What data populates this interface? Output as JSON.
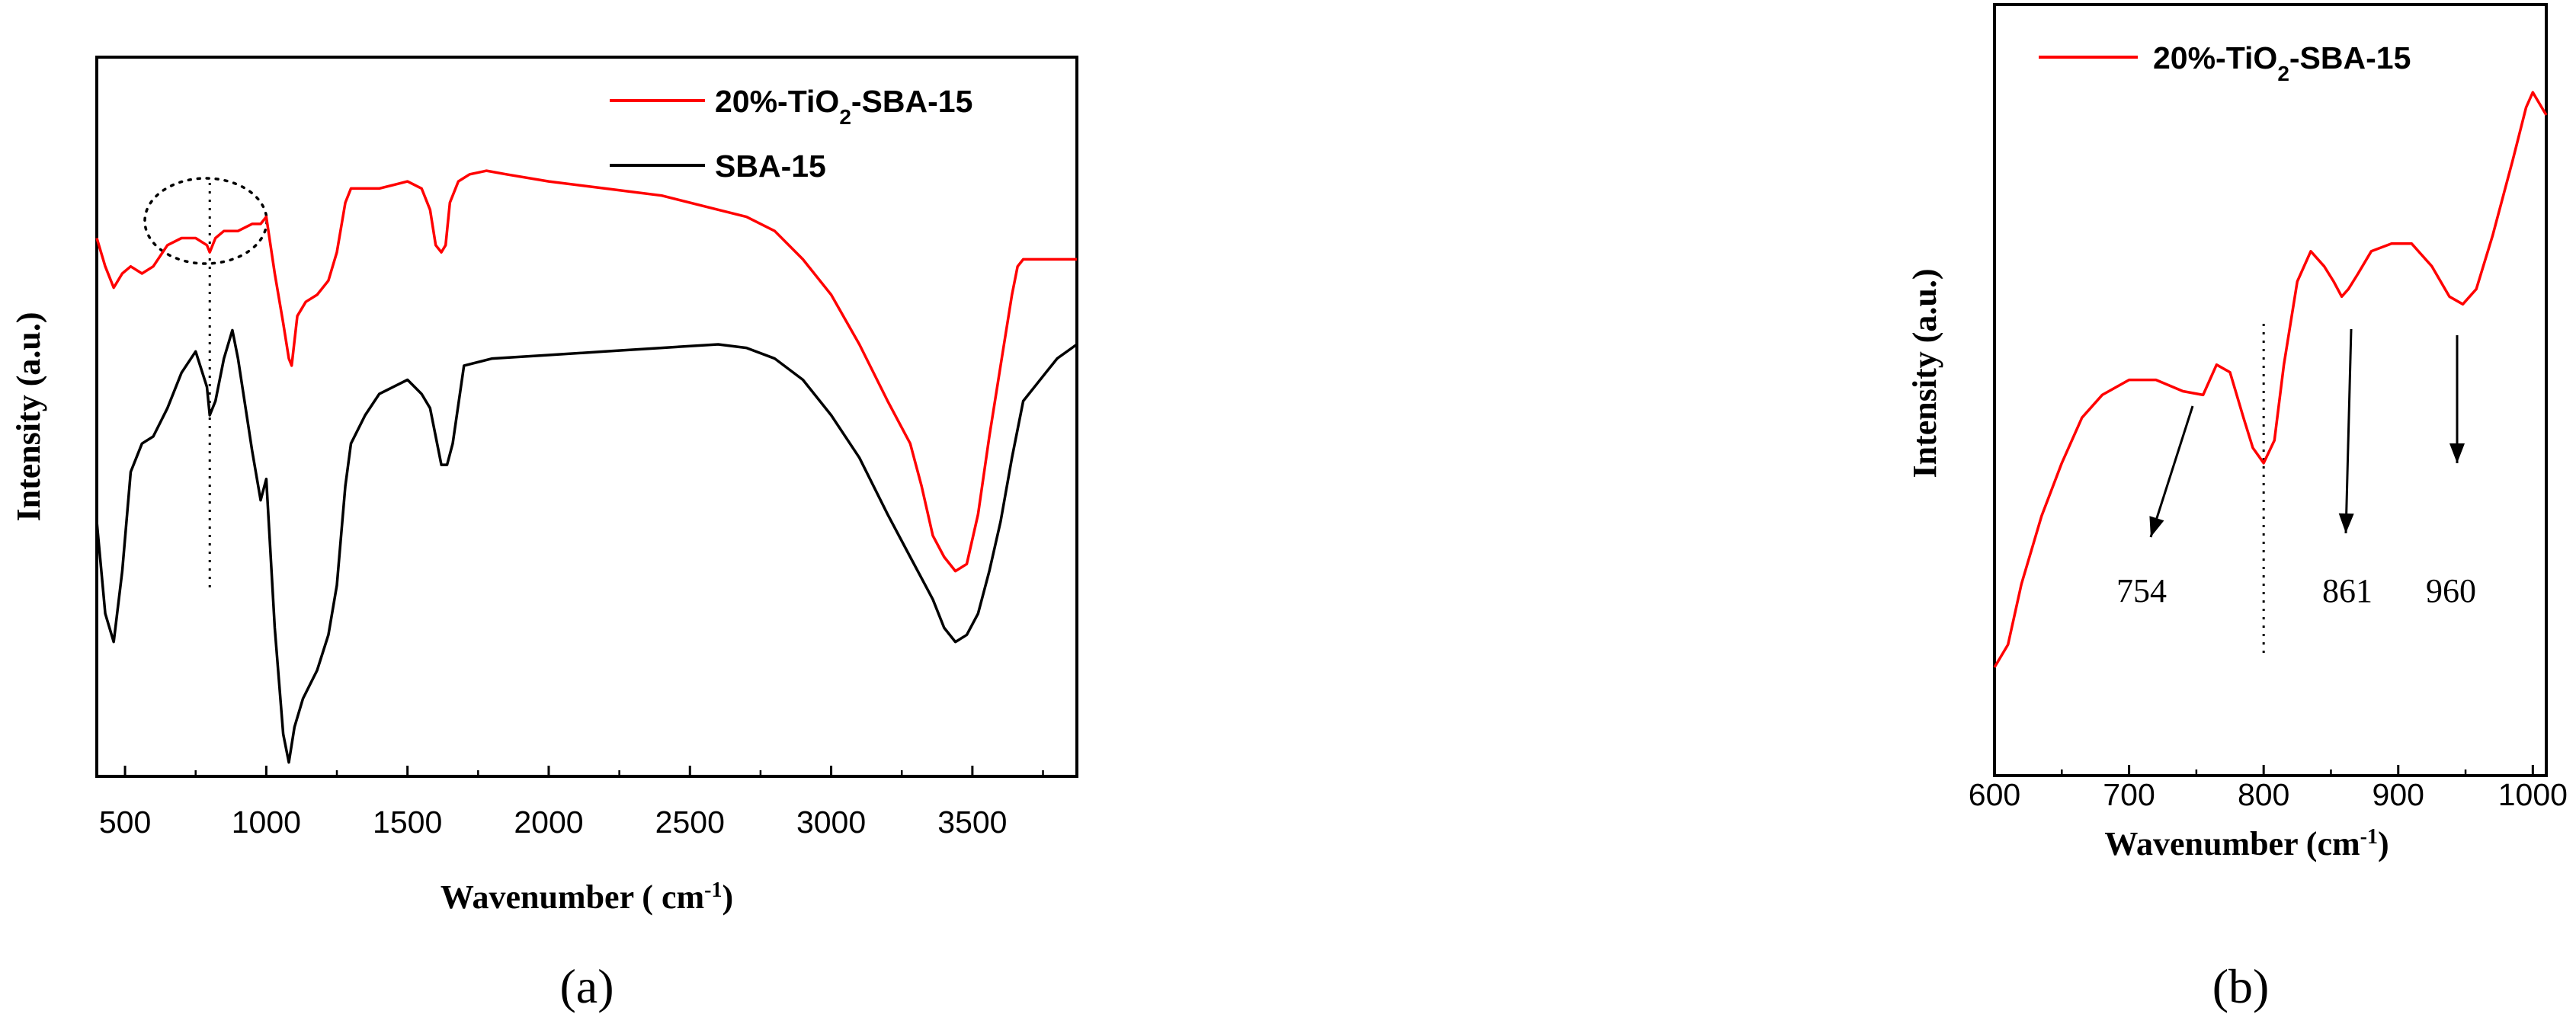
{
  "chart_data": [
    {
      "type": "line",
      "panel_label": "(a)",
      "xlabel": "Wavenumber ( cm-1)",
      "xlabel_parts": {
        "main": "Wavenumber ( cm",
        "sup": "-1",
        "end": ")"
      },
      "ylabel": "Intensity (a.u.)",
      "xlim": [
        400,
        3870
      ],
      "ylim": [
        0,
        100
      ],
      "x_ticks": [
        "500",
        "1000",
        "1500",
        "2000",
        "2500",
        "3000",
        "3500"
      ],
      "x_tick_values": [
        500,
        1000,
        1500,
        2000,
        2500,
        3000,
        3500
      ],
      "grid": false,
      "legend_placement": "top-right",
      "series": [
        {
          "name": "20%-TiO2-SBA-15",
          "name_parts": {
            "a": "20%-TiO",
            "sub": "2",
            "b": "-SBA-15"
          },
          "color": "#ff0000",
          "x": [
            400,
            430,
            460,
            490,
            520,
            560,
            600,
            650,
            700,
            750,
            790,
            800,
            820,
            850,
            900,
            950,
            980,
            1000,
            1030,
            1060,
            1080,
            1090,
            1110,
            1140,
            1180,
            1220,
            1250,
            1280,
            1300,
            1350,
            1400,
            1450,
            1500,
            1550,
            1580,
            1600,
            1620,
            1635,
            1650,
            1680,
            1720,
            1780,
            1850,
            2000,
            2200,
            2400,
            2600,
            2700,
            2800,
            2900,
            3000,
            3100,
            3200,
            3280,
            3320,
            3360,
            3400,
            3440,
            3480,
            3520,
            3560,
            3600,
            3640,
            3660,
            3680,
            3700,
            3750,
            3800,
            3870
          ],
          "values": [
            75,
            71,
            68,
            70,
            71,
            70,
            71,
            74,
            75,
            75,
            74,
            73,
            75,
            76,
            76,
            77,
            77,
            78,
            70,
            63,
            58,
            57,
            64,
            66,
            67,
            69,
            73,
            80,
            82,
            82,
            82,
            82.5,
            83,
            82,
            79,
            74,
            73,
            74,
            80,
            83,
            84,
            84.5,
            84,
            83,
            82,
            81,
            79,
            78,
            76,
            72,
            67,
            60,
            52,
            46,
            40,
            33,
            30,
            28,
            29,
            36,
            47,
            57,
            67,
            71,
            72,
            72,
            72,
            72,
            72
          ]
        },
        {
          "name": "SBA-15",
          "color": "#000000",
          "x": [
            400,
            430,
            460,
            490,
            520,
            560,
            600,
            650,
            700,
            750,
            790,
            800,
            820,
            850,
            880,
            900,
            950,
            980,
            1000,
            1030,
            1060,
            1080,
            1100,
            1130,
            1180,
            1220,
            1250,
            1280,
            1300,
            1350,
            1400,
            1450,
            1500,
            1550,
            1580,
            1600,
            1620,
            1640,
            1660,
            1700,
            1800,
            2000,
            2200,
            2400,
            2600,
            2700,
            2800,
            2900,
            3000,
            3100,
            3200,
            3280,
            3320,
            3360,
            3400,
            3440,
            3480,
            3520,
            3560,
            3600,
            3640,
            3680,
            3720,
            3760,
            3800,
            3870
          ],
          "values": [
            35,
            22,
            18,
            28,
            42,
            46,
            47,
            51,
            56,
            59,
            54,
            50,
            52,
            58,
            62,
            58,
            45,
            38,
            41,
            20,
            5,
            1,
            6,
            10,
            14,
            19,
            26,
            40,
            46,
            50,
            53,
            54,
            55,
            53,
            51,
            47,
            43,
            43,
            46,
            57,
            58,
            58.5,
            59,
            59.5,
            60,
            59.5,
            58,
            55,
            50,
            44,
            36,
            30,
            27,
            24,
            20,
            18,
            19,
            22,
            28,
            35,
            44,
            52,
            54,
            56,
            58,
            60
          ]
        }
      ],
      "annotations": [
        "dotted ellipse around 600-1000 cm-1 of 20%-TiO2-SBA-15",
        "dotted vertical line at 800 cm-1"
      ]
    },
    {
      "type": "line",
      "panel_label": "(b)",
      "xlabel": "Wavenumber (cm-1)",
      "xlabel_parts": {
        "main": "Wavenumber (cm",
        "sup": "-1",
        "end": ")"
      },
      "ylabel": "Intensity (a.u.)",
      "xlim": [
        600,
        1010
      ],
      "ylim": [
        0,
        100
      ],
      "x_ticks": [
        "600",
        "700",
        "800",
        "900",
        "1000"
      ],
      "x_tick_values": [
        600,
        700,
        800,
        900,
        1000
      ],
      "grid": false,
      "legend_placement": "top-left",
      "series": [
        {
          "name": "20%-TiO2-SBA-15",
          "name_parts": {
            "a": "20%-TiO",
            "sub": "2",
            "b": "-SBA-15"
          },
          "color": "#ff0000",
          "x": [
            600,
            610,
            620,
            635,
            650,
            665,
            680,
            700,
            720,
            740,
            755,
            765,
            775,
            785,
            792,
            800,
            808,
            815,
            825,
            835,
            845,
            852,
            858,
            863,
            870,
            880,
            895,
            910,
            925,
            938,
            948,
            958,
            970,
            985,
            995,
            1000,
            1010
          ],
          "values": [
            13,
            16,
            24,
            33,
            40,
            46,
            49,
            51,
            51,
            49.5,
            49,
            53,
            52,
            46,
            42,
            40,
            43,
            53,
            64,
            68,
            66,
            64,
            62,
            63,
            65,
            68,
            69,
            69,
            66,
            62,
            61,
            63,
            70,
            80,
            87,
            89,
            86
          ]
        }
      ],
      "annotations": [
        {
          "label": "754",
          "x": 754
        },
        {
          "label": "861",
          "x": 861
        },
        {
          "label": "960",
          "x": 960
        },
        {
          "label": "dotted vertical line at 800 cm-1"
        }
      ]
    }
  ]
}
